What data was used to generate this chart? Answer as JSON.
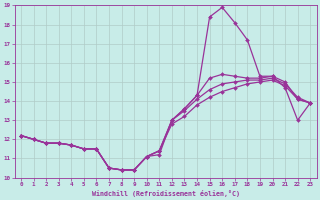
{
  "xlabel": "Windchill (Refroidissement éolien,°C)",
  "bg_color": "#c8ece8",
  "line_color": "#993399",
  "grid_color": "#b0ccc8",
  "xlim": [
    -0.5,
    23.5
  ],
  "ylim": [
    10,
    19
  ],
  "xticks": [
    0,
    1,
    2,
    3,
    4,
    5,
    6,
    7,
    8,
    9,
    10,
    11,
    12,
    13,
    14,
    15,
    16,
    17,
    18,
    19,
    20,
    21,
    22,
    23
  ],
  "yticks": [
    10,
    11,
    12,
    13,
    14,
    15,
    16,
    17,
    18,
    19
  ],
  "line1_y": [
    12.2,
    12.0,
    11.8,
    11.8,
    11.7,
    11.5,
    11.5,
    10.5,
    10.4,
    10.4,
    11.1,
    11.2,
    13.0,
    13.6,
    14.3,
    18.4,
    18.9,
    18.1,
    17.2,
    15.3,
    15.3,
    14.7,
    13.0,
    13.9
  ],
  "line2_y": [
    12.2,
    12.0,
    11.8,
    11.8,
    11.7,
    11.5,
    11.5,
    10.5,
    10.4,
    10.4,
    11.1,
    11.4,
    13.0,
    13.6,
    14.3,
    15.2,
    15.4,
    15.3,
    15.2,
    15.2,
    15.3,
    15.0,
    14.1,
    13.9
  ],
  "line3_y": [
    12.2,
    12.0,
    11.8,
    11.8,
    11.7,
    11.5,
    11.5,
    10.5,
    10.4,
    10.4,
    11.1,
    11.4,
    13.0,
    13.5,
    14.1,
    14.6,
    14.9,
    15.0,
    15.1,
    15.1,
    15.2,
    14.9,
    14.2,
    13.9
  ],
  "line4_y": [
    12.2,
    12.0,
    11.8,
    11.8,
    11.7,
    11.5,
    11.5,
    10.5,
    10.4,
    10.4,
    11.1,
    11.4,
    12.8,
    13.2,
    13.8,
    14.2,
    14.5,
    14.7,
    14.9,
    15.0,
    15.1,
    14.8,
    14.1,
    13.9
  ]
}
